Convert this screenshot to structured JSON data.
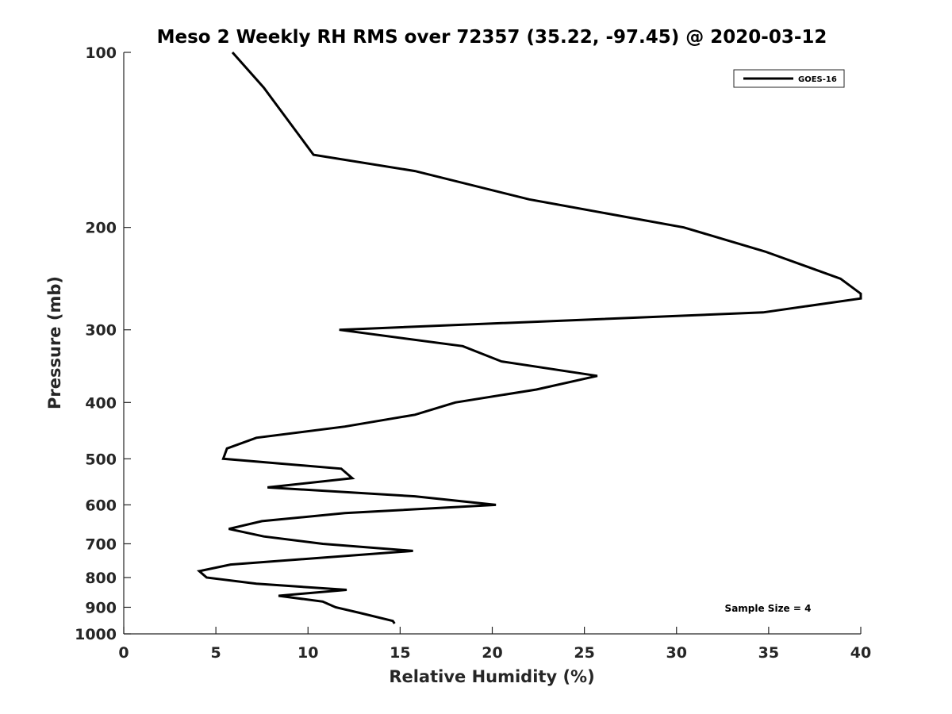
{
  "chart_data": {
    "type": "line",
    "title": "Meso 2 Weekly RH RMS over 72357 (35.22, -97.45) @ 2020-03-12",
    "xlabel": "Relative Humidity (%)",
    "ylabel": "Pressure (mb)",
    "xlim": [
      0,
      40
    ],
    "ylim": [
      100,
      1000
    ],
    "yscale": "log",
    "yreversed": true,
    "grid": false,
    "x_ticks": [
      0,
      5,
      10,
      15,
      20,
      25,
      30,
      35,
      40
    ],
    "x_tick_labels": [
      "0",
      "5",
      "10",
      "15",
      "20",
      "25",
      "30",
      "35",
      "40"
    ],
    "y_ticks": [
      100,
      200,
      300,
      400,
      500,
      600,
      700,
      800,
      900,
      1000
    ],
    "y_tick_labels": [
      "100",
      "200",
      "300",
      "400",
      "500",
      "600",
      "700",
      "800",
      "900",
      "1000"
    ],
    "legend": {
      "location": "top-right",
      "entries": [
        "GOES-16"
      ]
    },
    "annotations": [
      "Sample Size = 4"
    ],
    "series": [
      {
        "name": "GOES-16",
        "color": "#000000",
        "x": [
          5.9,
          7.6,
          10.3,
          15.8,
          22.0,
          30.4,
          34.8,
          38.9,
          40.0,
          40.0,
          34.7,
          11.7,
          18.4,
          20.5,
          25.7,
          22.4,
          18.0,
          15.8,
          12.0,
          7.2,
          5.6,
          5.4,
          11.8,
          12.4,
          7.8,
          15.8,
          20.2,
          12.0,
          7.5,
          5.7,
          7.6,
          10.8,
          15.7,
          5.8,
          4.1,
          4.5,
          7.2,
          12.1,
          8.4,
          10.8,
          11.5,
          12.8,
          14.6,
          14.7
        ],
        "y": [
          100,
          115,
          150,
          160,
          179,
          200,
          220,
          245,
          260,
          265,
          280,
          300,
          320,
          340,
          360,
          380,
          400,
          420,
          440,
          460,
          480,
          500,
          520,
          540,
          560,
          580,
          600,
          620,
          640,
          660,
          680,
          700,
          720,
          760,
          780,
          800,
          820,
          840,
          860,
          880,
          900,
          920,
          950,
          960
        ]
      }
    ]
  }
}
